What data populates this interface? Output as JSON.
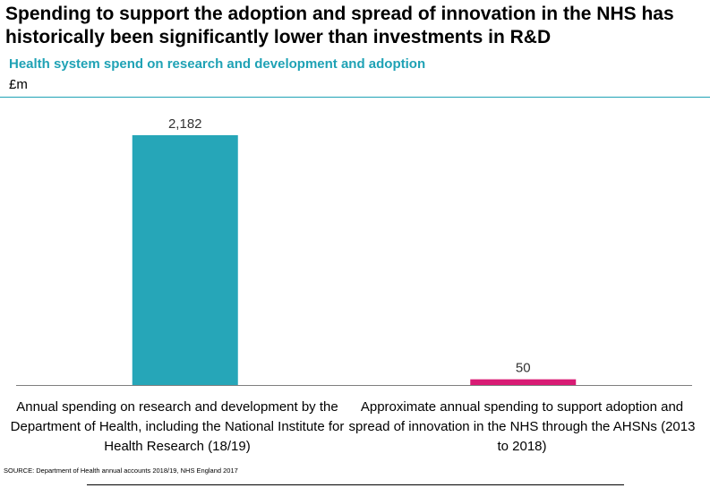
{
  "chart_data": {
    "type": "bar",
    "title": "Spending to support the adoption and spread of innovation in the NHS has historically been significantly lower than investments in R&D",
    "subtitle": "Health system spend on research and development and adoption",
    "ylabel": "£m",
    "categories": [
      "Annual spending on research and development by the Department of Health, including the National Institute for Health Research (18/19)",
      "Approximate annual spending to support adoption and spread of innovation in the NHS through the AHSNs (2013 to 2018)"
    ],
    "values": [
      2182,
      50
    ],
    "value_labels": [
      "2,182",
      "50"
    ],
    "ylim": [
      0,
      2182
    ],
    "colors": [
      "#26a6b8",
      "#d81b74"
    ],
    "grid": false,
    "legend": "none"
  },
  "source": "SOURCE: Department of Health annual accounts 2018/19, NHS England 2017"
}
